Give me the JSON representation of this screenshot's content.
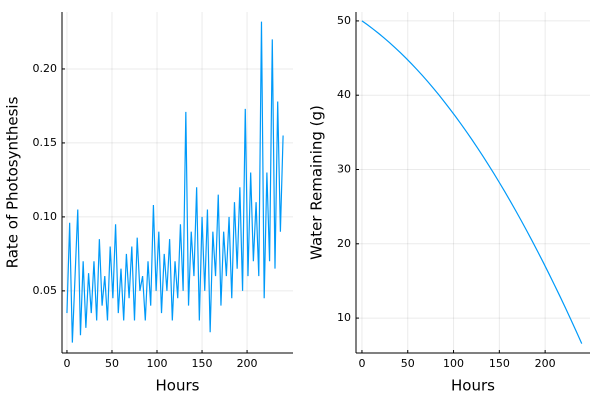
{
  "chart_data": [
    {
      "type": "line",
      "xlabel": "Hours",
      "ylabel": "Rate of Photosynthesis",
      "color": "#009af9",
      "grid": true,
      "xlim": [
        -5.5,
        251
      ],
      "ylim": [
        0.008,
        0.2385
      ],
      "xticks": [
        0,
        50,
        100,
        150,
        200
      ],
      "yticks": [
        0.05,
        {
          "value": 0.1,
          "label": "0.10"
        },
        0.15,
        {
          "value": 0.2,
          "label": "0.20"
        }
      ],
      "x": [
        0,
        3,
        6,
        9,
        12,
        15,
        18,
        21,
        24,
        27,
        30,
        33,
        36,
        39,
        42,
        45,
        48,
        51,
        54,
        57,
        60,
        63,
        66,
        69,
        72,
        75,
        78,
        81,
        84,
        87,
        90,
        93,
        96,
        99,
        102,
        105,
        108,
        111,
        114,
        117,
        120,
        123,
        126,
        129,
        132,
        135,
        138,
        141,
        144,
        147,
        150,
        153,
        156,
        159,
        162,
        165,
        168,
        171,
        174,
        177,
        180,
        183,
        186,
        189,
        192,
        195,
        198,
        201,
        204,
        207,
        210,
        213,
        216,
        219,
        222,
        225,
        228,
        231,
        234,
        237,
        240
      ],
      "values": [
        0.035,
        0.096,
        0.015,
        0.06,
        0.105,
        0.02,
        0.07,
        0.025,
        0.062,
        0.035,
        0.07,
        0.03,
        0.085,
        0.04,
        0.06,
        0.03,
        0.08,
        0.045,
        0.095,
        0.035,
        0.065,
        0.03,
        0.075,
        0.045,
        0.08,
        0.03,
        0.086,
        0.05,
        0.06,
        0.03,
        0.07,
        0.04,
        0.108,
        0.05,
        0.09,
        0.035,
        0.075,
        0.05,
        0.085,
        0.03,
        0.07,
        0.045,
        0.095,
        0.05,
        0.171,
        0.04,
        0.09,
        0.06,
        0.12,
        0.03,
        0.1,
        0.05,
        0.105,
        0.022,
        0.09,
        0.06,
        0.115,
        0.04,
        0.09,
        0.06,
        0.1,
        0.045,
        0.11,
        0.065,
        0.12,
        0.05,
        0.173,
        0.06,
        0.13,
        0.07,
        0.11,
        0.06,
        0.232,
        0.045,
        0.13,
        0.07,
        0.22,
        0.065,
        0.178,
        0.09,
        0.155
      ]
    },
    {
      "type": "line",
      "xlabel": "Hours",
      "ylabel": "Water Remaining (g)",
      "color": "#009af9",
      "grid": true,
      "xlim": [
        -6.5,
        249
      ],
      "ylim": [
        5.3,
        51.2
      ],
      "xticks": [
        0,
        50,
        100,
        150,
        200
      ],
      "yticks": [
        10,
        20,
        30,
        40,
        50
      ],
      "x": [
        0,
        6,
        12,
        18,
        24,
        30,
        36,
        42,
        48,
        54,
        60,
        66,
        72,
        78,
        84,
        90,
        96,
        102,
        108,
        114,
        120,
        126,
        132,
        138,
        144,
        150,
        156,
        162,
        168,
        174,
        180,
        186,
        192,
        198,
        204,
        210,
        216,
        222,
        228,
        234,
        240
      ],
      "values": [
        50,
        49.48,
        48.92,
        48.34,
        47.73,
        47.09,
        46.42,
        45.72,
        45.0,
        44.24,
        43.46,
        42.65,
        41.81,
        40.94,
        40.04,
        39.11,
        38.15,
        37.17,
        36.15,
        35.11,
        34.04,
        32.94,
        31.81,
        30.65,
        29.47,
        28.25,
        27.01,
        25.73,
        24.43,
        23.1,
        21.74,
        20.35,
        18.93,
        17.49,
        16.01,
        14.51,
        12.98,
        11.42,
        9.83,
        8.21,
        6.56
      ]
    }
  ]
}
